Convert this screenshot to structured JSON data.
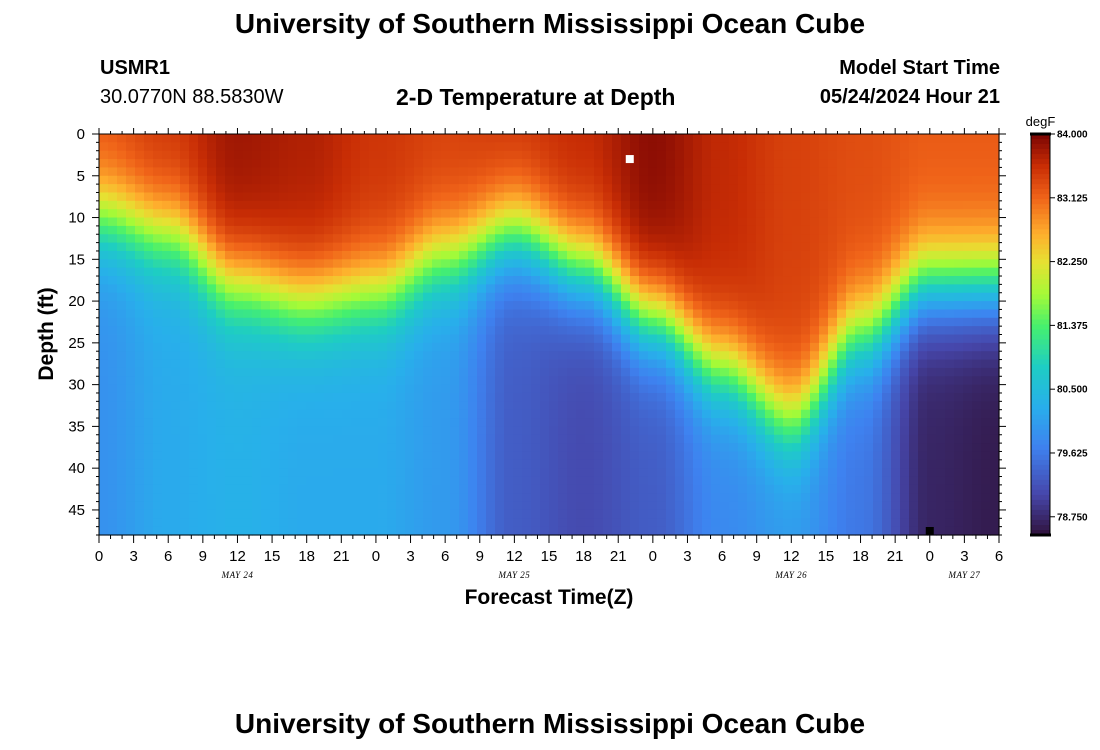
{
  "header": {
    "title": "University of Southern Mississippi Ocean Cube",
    "station_id": "USMR1",
    "coordinates": "30.0770N  88.5830W",
    "plot_title": "2-D Temperature at Depth",
    "model_start_label": "Model Start Time",
    "model_start_value": "05/24/2024 Hour 21"
  },
  "footer": {
    "title": "University of Southern Mississippi Ocean Cube"
  },
  "chart_data": {
    "type": "heatmap",
    "title": "2-D Temperature at Depth",
    "xlabel": "Forecast Time(Z)",
    "ylabel": "Depth (ft)",
    "x_tick_labels": [
      "0",
      "3",
      "6",
      "9",
      "12",
      "15",
      "18",
      "21",
      "0",
      "3",
      "6",
      "9",
      "12",
      "15",
      "18",
      "21",
      "0",
      "3",
      "6",
      "9",
      "12",
      "15",
      "18",
      "21",
      "0",
      "3",
      "6"
    ],
    "x_range_hours": [
      0,
      78
    ],
    "x_date_labels": [
      {
        "hour": 12,
        "label": "MAY 24"
      },
      {
        "hour": 36,
        "label": "MAY 25"
      },
      {
        "hour": 60,
        "label": "MAY 26"
      },
      {
        "hour": 75,
        "label": "MAY 27"
      }
    ],
    "y_ticks": [
      0,
      5,
      10,
      15,
      20,
      25,
      30,
      35,
      40,
      45
    ],
    "y_range": [
      0,
      48
    ],
    "y_inverted": true,
    "colorbar": {
      "unit": "degF",
      "ticks": [
        "84.000",
        "83.125",
        "82.250",
        "81.375",
        "80.500",
        "79.625",
        "78.750"
      ],
      "min": 78.5,
      "max": 84.0
    },
    "thermocline_depth_ft": {
      "hours": [
        0,
        6,
        12,
        18,
        24,
        30,
        36,
        42,
        48,
        54,
        60,
        66,
        72,
        78
      ],
      "depths": [
        10,
        12,
        18,
        20,
        19,
        15,
        12,
        16,
        22,
        28,
        34,
        24,
        18,
        18
      ]
    },
    "surface_temp_degF": {
      "hours": [
        0,
        6,
        12,
        18,
        24,
        30,
        36,
        42,
        48,
        54,
        60,
        66,
        72,
        78
      ],
      "values": [
        83.3,
        83.5,
        83.8,
        83.7,
        83.5,
        83.4,
        83.5,
        83.6,
        83.9,
        83.6,
        83.4,
        83.3,
        83.2,
        83.2
      ]
    },
    "bottom_temp_degF": {
      "hours": [
        0,
        6,
        12,
        18,
        24,
        30,
        36,
        42,
        48,
        54,
        60,
        66,
        72,
        78
      ],
      "values": [
        79.9,
        80.2,
        80.3,
        80.2,
        80.2,
        80.0,
        79.3,
        79.1,
        79.3,
        79.8,
        80.0,
        79.6,
        78.7,
        78.6
      ]
    },
    "markers": [
      {
        "hour": 46,
        "depth": 3,
        "color": "#ffffff"
      },
      {
        "hour": 72,
        "depth": 48,
        "color": "#000000"
      }
    ]
  }
}
